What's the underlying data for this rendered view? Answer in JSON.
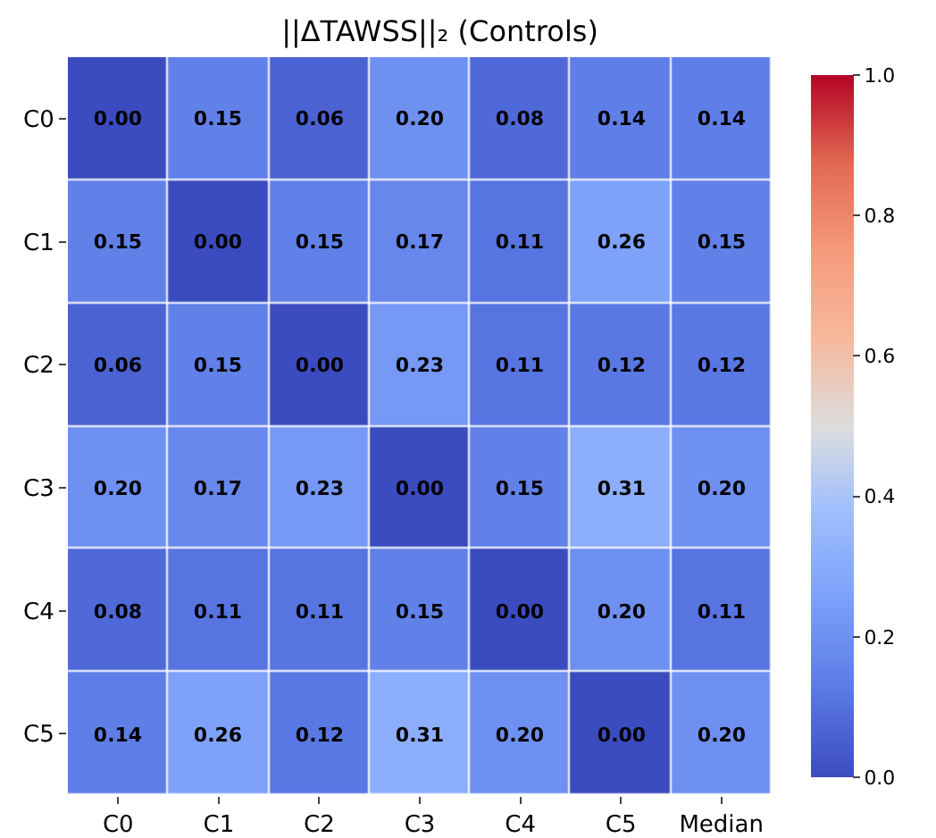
{
  "chart_data": {
    "type": "heatmap",
    "title": "||ΔTAWSS||₂ (Controls)",
    "categories": [
      "C0",
      "C1",
      "C2",
      "C3",
      "C4",
      "C5",
      "Median"
    ],
    "y_categories": [
      "C0",
      "C1",
      "C2",
      "C3",
      "C4",
      "C5"
    ],
    "cells": [
      [
        0.0,
        0.15,
        0.06,
        0.2,
        0.08,
        0.14,
        0.14
      ],
      [
        0.15,
        0.0,
        0.15,
        0.17,
        0.11,
        0.26,
        0.15
      ],
      [
        0.06,
        0.15,
        0.0,
        0.23,
        0.11,
        0.12,
        0.12
      ],
      [
        0.2,
        0.17,
        0.23,
        0.0,
        0.15,
        0.31,
        0.2
      ],
      [
        0.08,
        0.11,
        0.11,
        0.15,
        0.0,
        0.2,
        0.11
      ],
      [
        0.14,
        0.26,
        0.12,
        0.31,
        0.2,
        0.0,
        0.2
      ]
    ],
    "cell_labels": [
      [
        "0.00",
        "0.15",
        "0.06",
        "0.20",
        "0.08",
        "0.14",
        "0.14"
      ],
      [
        "0.15",
        "0.00",
        "0.15",
        "0.17",
        "0.11",
        "0.26",
        "0.15"
      ],
      [
        "0.06",
        "0.15",
        "0.00",
        "0.23",
        "0.11",
        "0.12",
        "0.12"
      ],
      [
        "0.20",
        "0.17",
        "0.23",
        "0.00",
        "0.15",
        "0.31",
        "0.20"
      ],
      [
        "0.08",
        "0.11",
        "0.11",
        "0.15",
        "0.00",
        "0.20",
        "0.11"
      ],
      [
        "0.14",
        "0.26",
        "0.12",
        "0.31",
        "0.20",
        "0.00",
        "0.20"
      ]
    ],
    "clim": [
      0,
      1
    ],
    "cticks": [
      {
        "value": 0,
        "label": "0.0"
      },
      {
        "value": 0.2,
        "label": "0.2"
      },
      {
        "value": 0.4,
        "label": "0.4"
      },
      {
        "value": 0.6,
        "label": "0.6"
      },
      {
        "value": 0.8,
        "label": "0.8"
      },
      {
        "value": 1,
        "label": "1.0"
      }
    ]
  }
}
